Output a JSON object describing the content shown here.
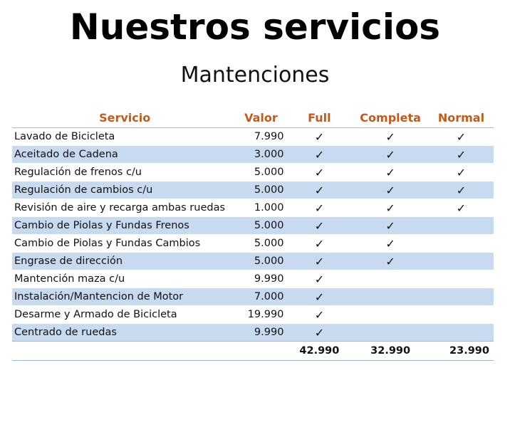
{
  "title": "Nuestros servicios",
  "subtitle": "Mantenciones",
  "check_symbol": "✓",
  "table": {
    "headers": {
      "servicio": "Servicio",
      "valor": "Valor",
      "full": "Full",
      "completa": "Completa",
      "normal": "Normal"
    },
    "header_color": "#c35a1b",
    "stripe_color": "#c8daf0",
    "rows": [
      {
        "servicio": "Lavado de Bicicleta",
        "valor": "7.990",
        "full": true,
        "completa": true,
        "normal": true
      },
      {
        "servicio": "Aceitado de Cadena",
        "valor": "3.000",
        "full": true,
        "completa": true,
        "normal": true
      },
      {
        "servicio": "Regulación de frenos c/u",
        "valor": "5.000",
        "full": true,
        "completa": true,
        "normal": true
      },
      {
        "servicio": "Regulación de cambios c/u",
        "valor": "5.000",
        "full": true,
        "completa": true,
        "normal": true
      },
      {
        "servicio": "Revisión de aire y recarga ambas ruedas",
        "valor": "1.000",
        "full": true,
        "completa": true,
        "normal": true
      },
      {
        "servicio": "Cambio de Piolas y Fundas Frenos",
        "valor": "5.000",
        "full": true,
        "completa": true,
        "normal": false
      },
      {
        "servicio": "Cambio de Piolas y Fundas Cambios",
        "valor": "5.000",
        "full": true,
        "completa": true,
        "normal": false
      },
      {
        "servicio": "Engrase de dirección",
        "valor": "5.000",
        "full": true,
        "completa": true,
        "normal": false
      },
      {
        "servicio": "Mantención maza c/u",
        "valor": "9.990",
        "full": true,
        "completa": false,
        "normal": false
      },
      {
        "servicio": "Instalación/Mantencion de Motor",
        "valor": "7.000",
        "full": true,
        "completa": false,
        "normal": false
      },
      {
        "servicio": "Desarme y Armado de Bicicleta",
        "valor": "19.990",
        "full": true,
        "completa": false,
        "normal": false
      },
      {
        "servicio": "Centrado de ruedas",
        "valor": "9.990",
        "full": true,
        "completa": false,
        "normal": false
      }
    ],
    "totals": {
      "full": "42.990",
      "completa": "32.990",
      "normal": "23.990"
    }
  }
}
